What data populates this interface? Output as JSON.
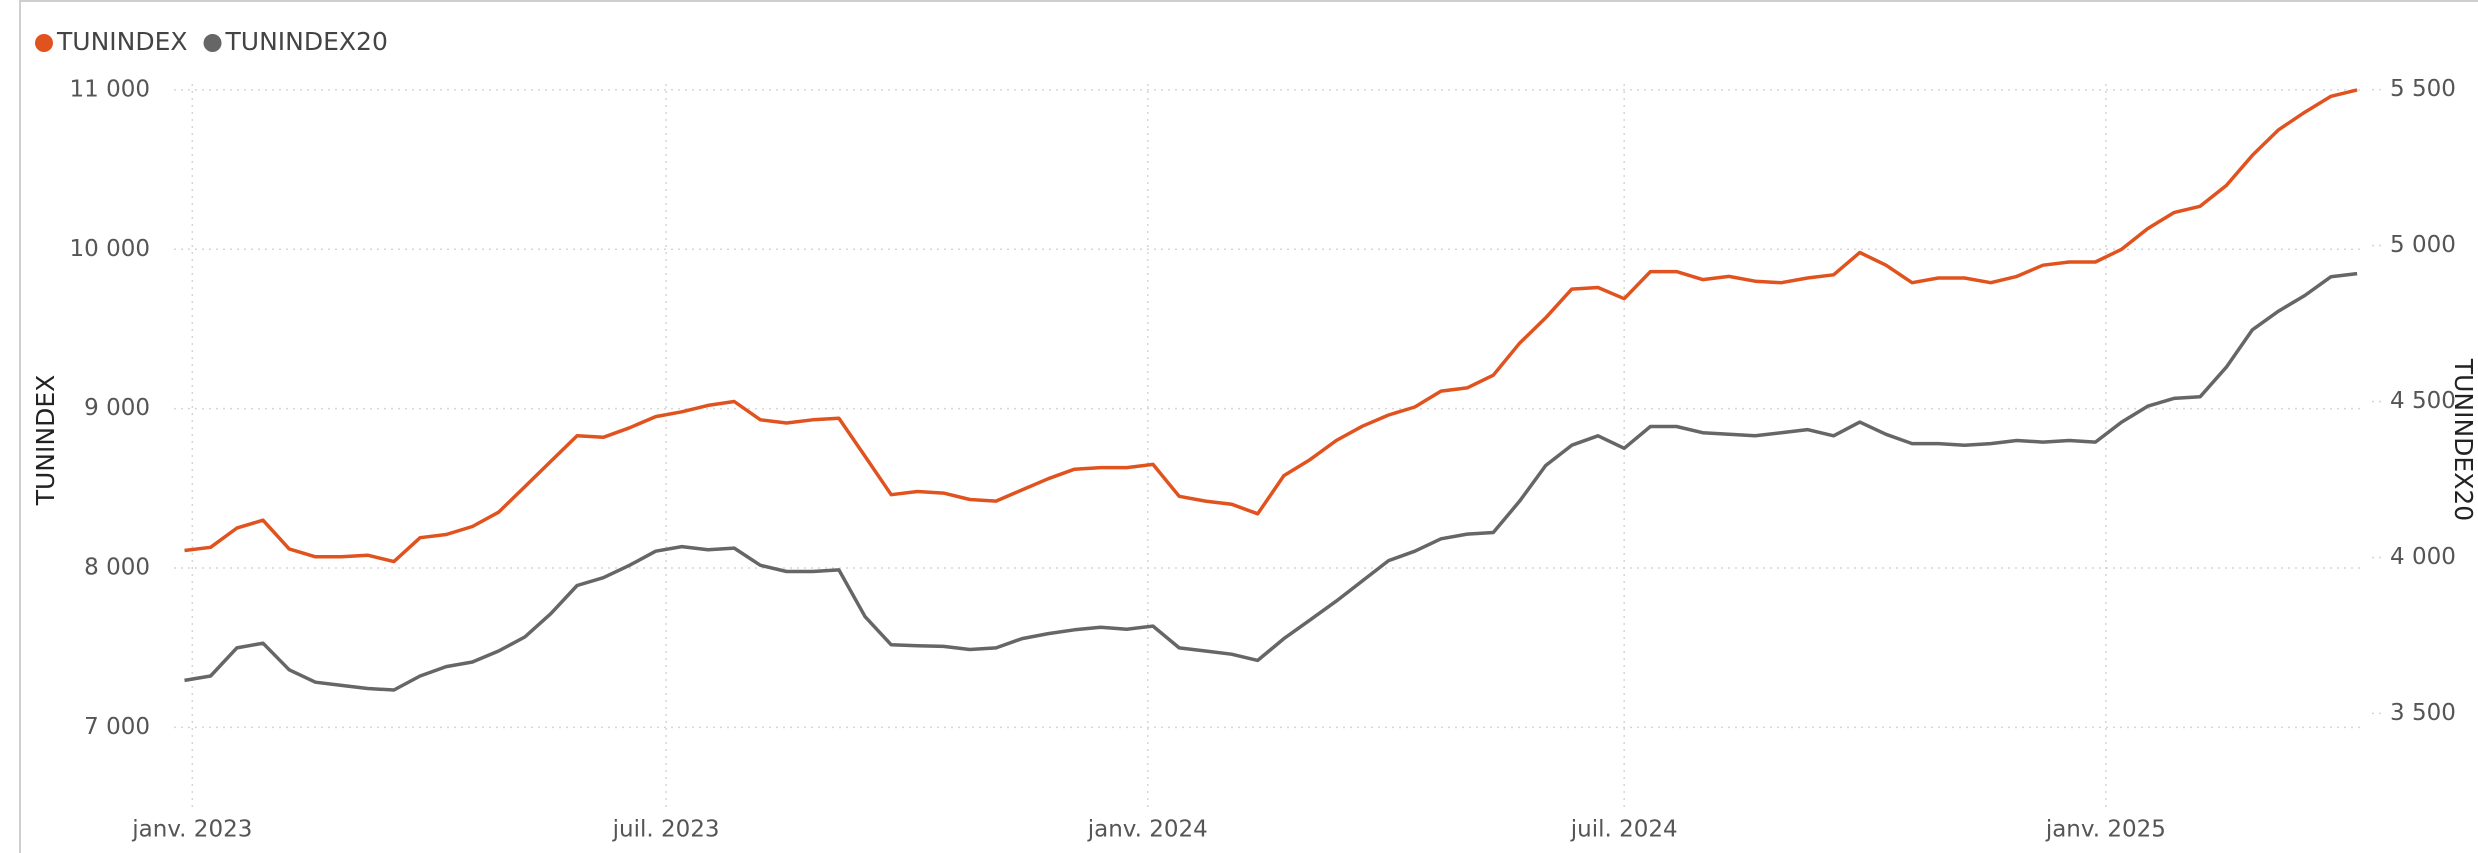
{
  "chart_data": {
    "type": "line",
    "y_label": "TUNINDEX",
    "y2_label": "TUNINDEX20",
    "x": [
      "2022-12-29",
      "2023-01-08",
      "2023-01-18",
      "2023-01-28",
      "2023-02-07",
      "2023-02-17",
      "2023-02-27",
      "2023-03-09",
      "2023-03-19",
      "2023-03-29",
      "2023-04-08",
      "2023-04-18",
      "2023-04-28",
      "2023-05-08",
      "2023-05-18",
      "2023-05-28",
      "2023-06-07",
      "2023-06-17",
      "2023-06-27",
      "2023-07-07",
      "2023-07-17",
      "2023-07-27",
      "2023-08-06",
      "2023-08-16",
      "2023-08-26",
      "2023-09-05",
      "2023-09-15",
      "2023-09-25",
      "2023-10-05",
      "2023-10-15",
      "2023-10-25",
      "2023-11-04",
      "2023-11-14",
      "2023-11-24",
      "2023-12-04",
      "2023-12-14",
      "2023-12-24",
      "2024-01-03",
      "2024-01-13",
      "2024-01-23",
      "2024-02-02",
      "2024-02-12",
      "2024-02-22",
      "2024-03-03",
      "2024-03-13",
      "2024-03-23",
      "2024-04-02",
      "2024-04-12",
      "2024-04-22",
      "2024-05-02",
      "2024-05-12",
      "2024-05-22",
      "2024-06-01",
      "2024-06-11",
      "2024-06-21",
      "2024-07-01",
      "2024-07-11",
      "2024-07-21",
      "2024-07-31",
      "2024-08-10",
      "2024-08-20",
      "2024-08-30",
      "2024-09-09",
      "2024-09-19",
      "2024-09-29",
      "2024-10-09",
      "2024-10-19",
      "2024-10-29",
      "2024-11-08",
      "2024-11-18",
      "2024-11-28",
      "2024-12-08",
      "2024-12-18",
      "2024-12-28",
      "2025-01-07",
      "2025-01-17",
      "2025-01-27",
      "2025-02-06",
      "2025-02-16",
      "2025-02-26",
      "2025-03-08",
      "2025-03-18",
      "2025-03-28",
      "2025-04-07"
    ],
    "series": [
      {
        "name": "TUNINDEX",
        "color": "#e0531f",
        "axis": "y",
        "values": [
          8110,
          8130,
          8250,
          8300,
          8120,
          8070,
          8070,
          8080,
          8040,
          8190,
          8210,
          8260,
          8350,
          8510,
          8670,
          8830,
          8820,
          8880,
          8950,
          8980,
          9020,
          9045,
          8930,
          8910,
          8930,
          8940,
          8700,
          8460,
          8480,
          8470,
          8430,
          8420,
          8490,
          8560,
          8620,
          8630,
          8630,
          8650,
          8450,
          8420,
          8400,
          8340,
          8580,
          8680,
          8800,
          8890,
          8960,
          9010,
          9110,
          9130,
          9210,
          9410,
          9570,
          9750,
          9760,
          9690,
          9860,
          9860,
          9810,
          9830,
          9800,
          9790,
          9820,
          9840,
          9980,
          9900,
          9790,
          9820,
          9820,
          9790,
          9830,
          9900,
          9920,
          9920,
          10000,
          10130,
          10230,
          10270,
          10400,
          10590,
          10750,
          10860,
          10960,
          11000
        ]
      },
      {
        "name": "TUNINDEX20",
        "color": "#666666",
        "axis": "y2",
        "values": [
          3606,
          3620,
          3710,
          3725,
          3640,
          3600,
          3590,
          3580,
          3575,
          3620,
          3650,
          3665,
          3700,
          3745,
          3820,
          3910,
          3935,
          3975,
          4020,
          4035,
          4025,
          4030,
          3975,
          3955,
          3955,
          3960,
          3810,
          3720,
          3717,
          3715,
          3705,
          3710,
          3740,
          3756,
          3768,
          3776,
          3770,
          3780,
          3710,
          3700,
          3690,
          3670,
          3740,
          3800,
          3860,
          3925,
          3990,
          4020,
          4060,
          4075,
          4080,
          4180,
          4295,
          4360,
          4390,
          4350,
          4420,
          4420,
          4400,
          4395,
          4390,
          4400,
          4410,
          4390,
          4434,
          4395,
          4365,
          4365,
          4360,
          4365,
          4375,
          4370,
          4375,
          4370,
          4434,
          4485,
          4510,
          4515,
          4610,
          4730,
          4790,
          4840,
          4900,
          4910
        ]
      }
    ],
    "xlim": [
      "2022-12-25",
      "2025-04-10"
    ],
    "xticks": [
      {
        "value": "2023-01-01",
        "label": "janv. 2023"
      },
      {
        "value": "2023-07-01",
        "label": "juil. 2023"
      },
      {
        "value": "2024-01-01",
        "label": "janv. 2024"
      },
      {
        "value": "2024-07-01",
        "label": "juil. 2024"
      },
      {
        "value": "2025-01-01",
        "label": "janv. 2025"
      }
    ],
    "ylim": [
      6500,
      11100
    ],
    "yticks": [
      {
        "value": 7000,
        "label": "7 000"
      },
      {
        "value": 8000,
        "label": "8 000"
      },
      {
        "value": 9000,
        "label": "9 000"
      },
      {
        "value": 10000,
        "label": "10 000"
      },
      {
        "value": 11000,
        "label": "11 000"
      }
    ],
    "y2lim": [
      3200,
      5550
    ],
    "y2ticks": [
      {
        "value": 3500,
        "label": "3 500"
      },
      {
        "value": 4000,
        "label": "4 000"
      },
      {
        "value": 4500,
        "label": "4 500"
      },
      {
        "value": 5000,
        "label": "5 000"
      },
      {
        "value": 5500,
        "label": "5 500"
      }
    ],
    "grid": true,
    "legend": "top-left"
  }
}
